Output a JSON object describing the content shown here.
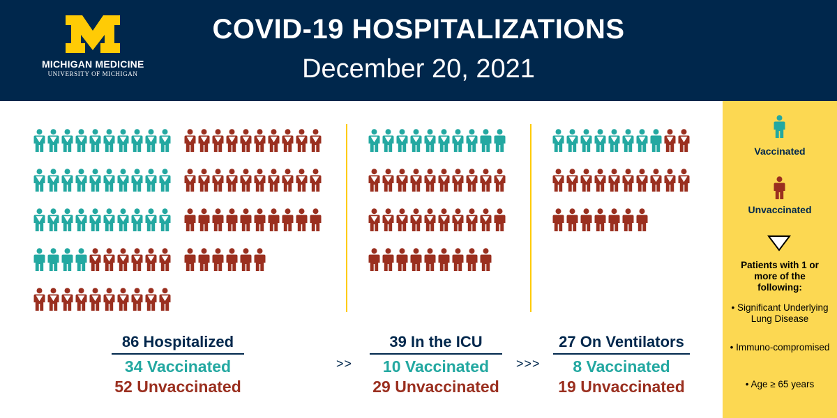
{
  "header": {
    "logo_text_1": "MICHIGAN MEDICINE",
    "logo_text_2": "UNIVERSITY OF MICHIGAN",
    "title": "COVID-19 HOSPITALIZATIONS",
    "date": "December 20, 2021"
  },
  "colors": {
    "navy": "#00274c",
    "maize": "#ffcb05",
    "vaccinated": "#23a8a1",
    "unvaccinated": "#9a2f1f",
    "legend_bg": "#fcd852"
  },
  "groups": {
    "hospitalized": {
      "label": "86 Hospitalized",
      "vaccinated_text": "34 Vaccinated",
      "unvaccinated_text": "52 Unvaccinated",
      "vaccinated": 34,
      "unvaccinated": 52,
      "vaccinated_with_condition": 30,
      "unvaccinated_with_condition": 36
    },
    "icu": {
      "label": "39 In the ICU",
      "vaccinated_text": "10 Vaccinated",
      "unvaccinated_text": "29 Unvaccinated",
      "vaccinated": 10,
      "unvaccinated": 29,
      "vaccinated_with_condition": 8,
      "unvaccinated_with_condition": 19
    },
    "ventilators": {
      "label": "27 On Ventilators",
      "vaccinated_text": "8 Vaccinated",
      "unvaccinated_text": "19 Unvaccinated",
      "vaccinated": 8,
      "unvaccinated": 19,
      "vaccinated_with_condition": 7,
      "unvaccinated_with_condition": 12
    }
  },
  "arrows": {
    "first": ">>",
    "second": ">>>"
  },
  "legend": {
    "vaccinated_label": "Vaccinated",
    "unvaccinated_label": "Unvaccinated",
    "triangle_note": "Patients with 1 or more of the following:",
    "bullets": [
      "• Significant Underlying Lung Disease",
      "• Immuno-compromised",
      "• Age ≥ 65 years"
    ]
  }
}
